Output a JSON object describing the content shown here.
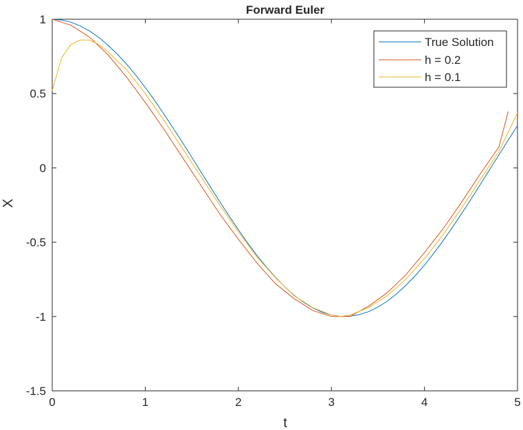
{
  "chart_data": {
    "type": "line",
    "title": "Forward Euler",
    "xlabel": "t",
    "ylabel": "X",
    "xlim": [
      0,
      5
    ],
    "ylim": [
      -1.5,
      1
    ],
    "xticks": [
      0,
      1,
      2,
      3,
      4,
      5
    ],
    "xtick_labels": [
      "0",
      "1",
      "2",
      "3",
      "4",
      "5"
    ],
    "yticks": [
      1,
      0.5,
      0,
      -0.5,
      -1,
      -1.5
    ],
    "ytick_labels": [
      "1",
      "0.5",
      "0",
      "-0.5",
      "-1",
      "-1.5"
    ],
    "grid": false,
    "legend_position": "top-right",
    "series": [
      {
        "name": "True Solution",
        "color": "#0072BD",
        "x": [
          0,
          0.1,
          0.2,
          0.3,
          0.4,
          0.5,
          0.6,
          0.7,
          0.8,
          0.9,
          1.0,
          1.1,
          1.2,
          1.3,
          1.4,
          1.5,
          1.6,
          1.7,
          1.8,
          1.9,
          2.0,
          2.1,
          2.2,
          2.3,
          2.4,
          2.5,
          2.6,
          2.7,
          2.8,
          2.9,
          3.0,
          3.1,
          3.2,
          3.3,
          3.4,
          3.5,
          3.6,
          3.7,
          3.8,
          3.9,
          4.0,
          4.1,
          4.2,
          4.3,
          4.4,
          4.5,
          4.6,
          4.7,
          4.8,
          4.9,
          5.0
        ],
        "y": [
          1.0,
          0.995,
          0.98,
          0.955,
          0.921,
          0.878,
          0.825,
          0.765,
          0.697,
          0.622,
          0.54,
          0.454,
          0.362,
          0.267,
          0.17,
          0.071,
          -0.029,
          -0.129,
          -0.227,
          -0.323,
          -0.416,
          -0.505,
          -0.589,
          -0.666,
          -0.737,
          -0.801,
          -0.857,
          -0.904,
          -0.942,
          -0.971,
          -0.99,
          -0.999,
          -0.998,
          -0.987,
          -0.967,
          -0.936,
          -0.897,
          -0.848,
          -0.79,
          -0.726,
          -0.654,
          -0.575,
          -0.49,
          -0.401,
          -0.307,
          -0.211,
          -0.112,
          -0.012,
          0.087,
          0.187,
          0.284
        ]
      },
      {
        "name": "h = 0.2",
        "color": "#D95319",
        "x": [
          0,
          0.2,
          0.4,
          0.6,
          0.8,
          1.0,
          1.2,
          1.4,
          1.6,
          1.8,
          2.0,
          2.2,
          2.4,
          2.6,
          2.8,
          3.0,
          3.2,
          3.4,
          3.6,
          3.8,
          4.0,
          4.2,
          4.4,
          4.6,
          4.8,
          4.9
        ],
        "y": [
          1.0,
          0.96,
          0.88,
          0.76,
          0.61,
          0.44,
          0.26,
          0.07,
          -0.12,
          -0.31,
          -0.48,
          -0.64,
          -0.78,
          -0.88,
          -0.96,
          -1.0,
          -1.0,
          -0.93,
          -0.84,
          -0.72,
          -0.57,
          -0.41,
          -0.23,
          -0.04,
          0.14,
          0.38
        ]
      },
      {
        "name": "h = 0.1",
        "color": "#EDB120",
        "x": [
          0,
          0.1,
          0.2,
          0.3,
          0.4,
          0.5,
          0.6,
          0.8,
          1.0,
          1.2,
          1.4,
          1.6,
          1.8,
          2.0,
          2.2,
          2.4,
          2.6,
          2.8,
          3.0,
          3.1,
          3.2,
          3.4,
          3.6,
          3.8,
          4.0,
          4.2,
          4.4,
          4.6,
          4.8,
          5.0
        ],
        "y": [
          0.52,
          0.74,
          0.83,
          0.86,
          0.86,
          0.83,
          0.78,
          0.66,
          0.5,
          0.32,
          0.13,
          -0.06,
          -0.25,
          -0.43,
          -0.6,
          -0.74,
          -0.86,
          -0.94,
          -0.99,
          -1.0,
          -0.99,
          -0.94,
          -0.86,
          -0.75,
          -0.61,
          -0.45,
          -0.27,
          -0.08,
          0.11,
          0.37
        ]
      }
    ]
  }
}
